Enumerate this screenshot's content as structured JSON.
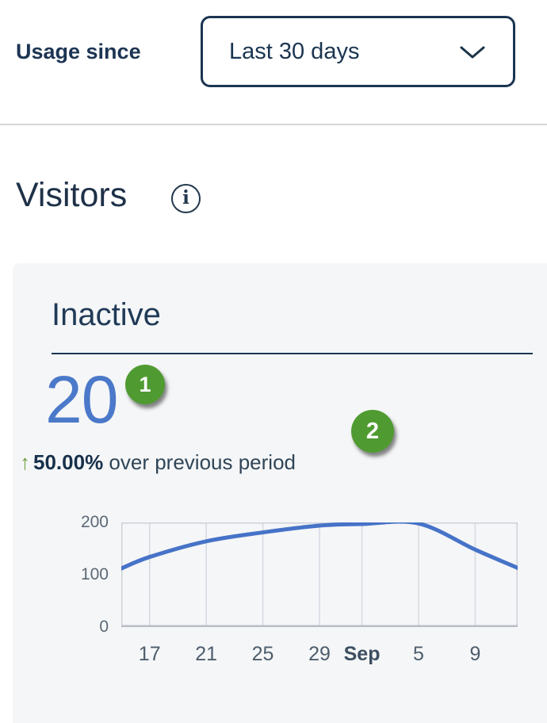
{
  "header": {
    "label": "Usage since",
    "dropdown": {
      "value": "Last 30 days"
    }
  },
  "section": {
    "title": "Visitors"
  },
  "card": {
    "title": "Inactive",
    "value": "20",
    "delta": {
      "arrow": "↑",
      "percent": "50.00%",
      "text": "over previous period"
    },
    "annotations": [
      {
        "label": "1"
      },
      {
        "label": "2"
      }
    ]
  },
  "colors": {
    "navy_text": "#1c3553",
    "metric_blue": "#4b79ca",
    "badge_green": "#4f9b31",
    "arrow_green": "#6ba03e",
    "card_background": "#f5f6f7",
    "line_blue": "#4673c8"
  },
  "chart_data": {
    "type": "line",
    "title": "",
    "series": [
      {
        "name": "Inactive",
        "x": [
          0,
          2,
          6,
          10,
          14,
          17,
          21,
          25,
          28
        ],
        "values": [
          112,
          134,
          164,
          181,
          194,
          197,
          198,
          148,
          113
        ]
      }
    ],
    "x_tick_labels": [
      {
        "pos": 2,
        "label": "17"
      },
      {
        "pos": 6,
        "label": "21"
      },
      {
        "pos": 10,
        "label": "25"
      },
      {
        "pos": 14,
        "label": "29"
      },
      {
        "pos": 17,
        "label": "Sep",
        "bold": true
      },
      {
        "pos": 21,
        "label": "5"
      },
      {
        "pos": 25,
        "label": "9"
      }
    ],
    "y_tick_labels": [
      {
        "value": 0,
        "label": "0"
      },
      {
        "value": 100,
        "label": "100"
      },
      {
        "value": 200,
        "label": "200"
      }
    ],
    "xlim": [
      0,
      28
    ],
    "ylim": [
      0,
      200
    ],
    "grid": true,
    "legend": false,
    "line_color": "#4673c8",
    "grid_color": "#d5d9e1",
    "border_color": "#cdd1da",
    "axis_color": "#b8bdc7"
  }
}
